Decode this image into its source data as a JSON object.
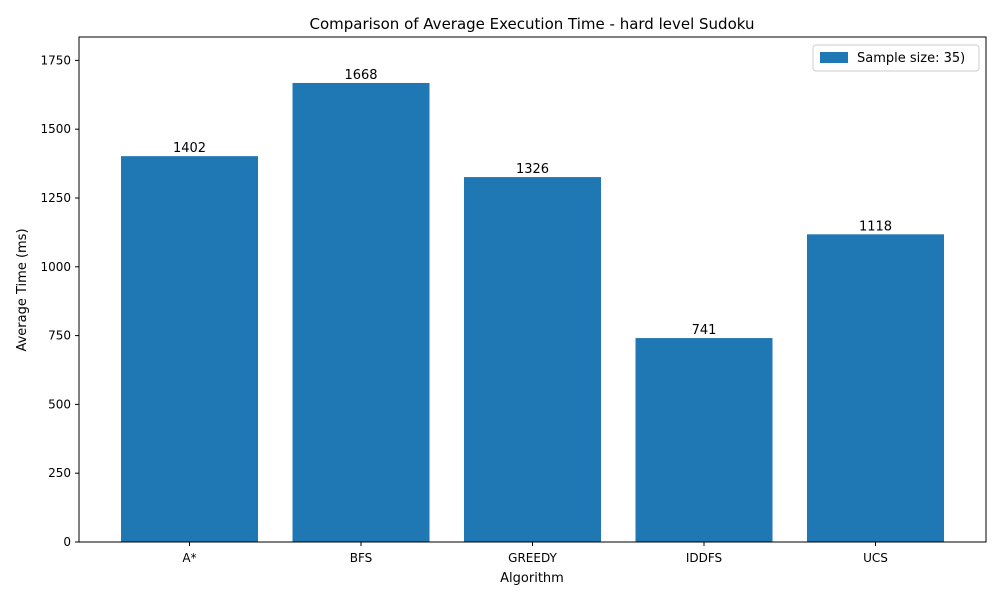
{
  "chart_data": {
    "type": "bar",
    "title": "Comparison of Average Execution Time - hard level Sudoku",
    "xlabel": "Algorithm",
    "ylabel": "Average Time (ms)",
    "categories": [
      "A*",
      "BFS",
      "GREEDY",
      "IDDFS",
      "UCS"
    ],
    "series": [
      {
        "name": "Sample size: 35)",
        "values": [
          1402,
          1668,
          1326,
          741,
          1118
        ]
      }
    ],
    "ylim": [
      0,
      1835
    ],
    "yticks": [
      0,
      250,
      500,
      750,
      1000,
      1250,
      1500,
      1750
    ],
    "grid": false,
    "legend_position": "top-right",
    "colors": {
      "bar": "#1f77b4",
      "axis": "#000000",
      "background": "#ffffff"
    }
  }
}
